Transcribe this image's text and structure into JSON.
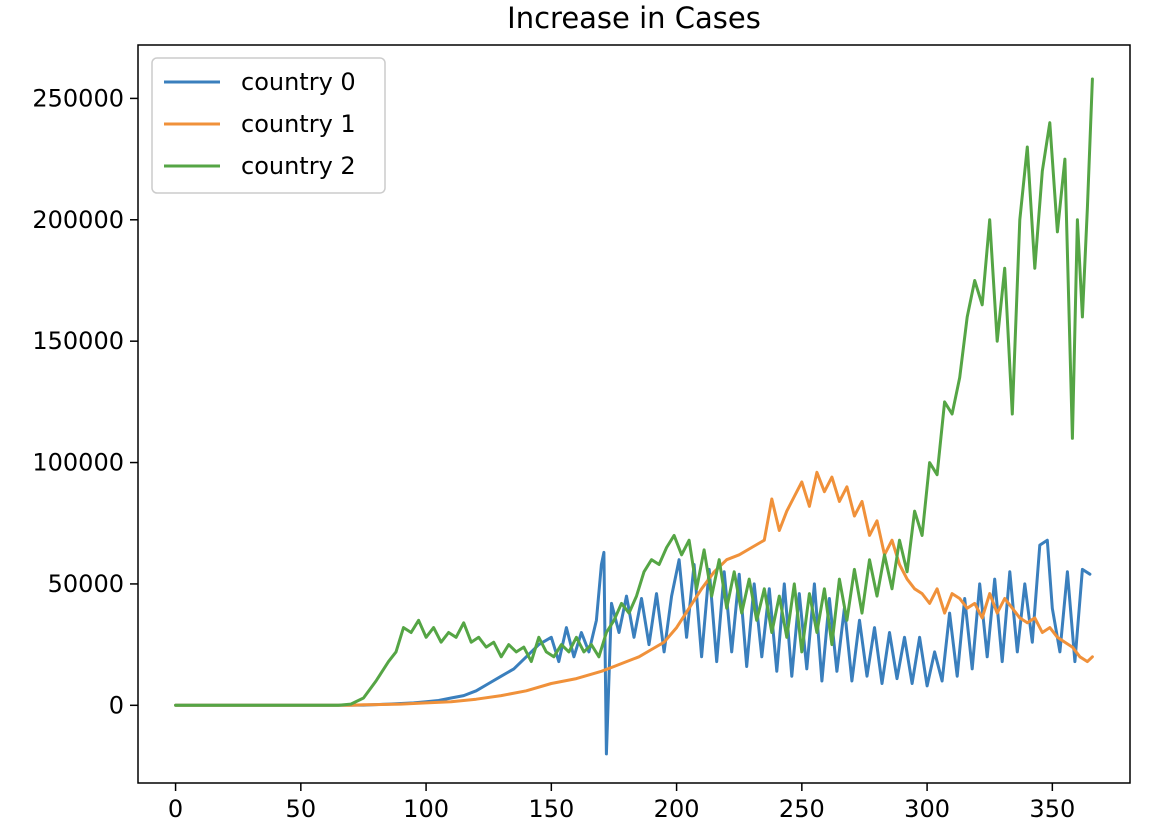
{
  "chart_data": {
    "type": "line",
    "title": "Increase in Cases",
    "xlabel": "",
    "ylabel": "",
    "xlim": [
      -15,
      381
    ],
    "ylim": [
      -32000,
      272000
    ],
    "xticks": [
      0,
      50,
      100,
      150,
      200,
      250,
      300,
      350
    ],
    "yticks": [
      0,
      50000,
      100000,
      150000,
      200000,
      250000
    ],
    "grid": false,
    "legend_position": "top-left",
    "series": [
      {
        "name": "country 0",
        "color": "#3a7fbd",
        "x": [
          0,
          60,
          75,
          85,
          95,
          100,
          105,
          110,
          115,
          120,
          125,
          130,
          135,
          140,
          145,
          150,
          153,
          156,
          159,
          162,
          165,
          168,
          170,
          171,
          172,
          174,
          177,
          180,
          183,
          186,
          189,
          192,
          195,
          198,
          201,
          204,
          207,
          210,
          213,
          216,
          219,
          222,
          225,
          228,
          231,
          234,
          237,
          240,
          243,
          246,
          249,
          252,
          255,
          258,
          261,
          264,
          267,
          270,
          273,
          276,
          279,
          282,
          285,
          288,
          291,
          294,
          297,
          300,
          303,
          306,
          309,
          312,
          315,
          318,
          321,
          324,
          327,
          330,
          333,
          336,
          339,
          342,
          345,
          348,
          350,
          353,
          356,
          359,
          362,
          365
        ],
        "values": [
          0,
          0,
          100,
          500,
          1000,
          1500,
          2000,
          3000,
          4000,
          6000,
          9000,
          12000,
          15000,
          20000,
          25000,
          28000,
          18000,
          32000,
          20000,
          30000,
          22000,
          35000,
          58000,
          63000,
          -20000,
          42000,
          30000,
          45000,
          28000,
          44000,
          25000,
          46000,
          22000,
          45000,
          60000,
          28000,
          58000,
          20000,
          56000,
          18000,
          55000,
          22000,
          54000,
          16000,
          50000,
          20000,
          48000,
          14000,
          50000,
          12000,
          46000,
          15000,
          50000,
          10000,
          44000,
          14000,
          40000,
          10000,
          35000,
          12000,
          32000,
          9000,
          30000,
          11000,
          28000,
          9000,
          28000,
          8000,
          22000,
          10000,
          38000,
          12000,
          44000,
          15000,
          50000,
          20000,
          52000,
          18000,
          55000,
          22000,
          50000,
          26000,
          66000,
          68000,
          40000,
          22000,
          55000,
          18000,
          56000,
          54000
        ]
      },
      {
        "name": "country 1",
        "color": "#f0913a",
        "x": [
          0,
          70,
          75,
          80,
          90,
          100,
          110,
          120,
          130,
          140,
          150,
          160,
          170,
          175,
          180,
          185,
          190,
          195,
          200,
          205,
          210,
          215,
          220,
          225,
          230,
          235,
          238,
          241,
          244,
          247,
          250,
          253,
          256,
          259,
          262,
          265,
          268,
          271,
          274,
          277,
          280,
          283,
          286,
          289,
          292,
          295,
          298,
          301,
          304,
          307,
          310,
          313,
          316,
          319,
          322,
          325,
          328,
          331,
          334,
          337,
          340,
          343,
          346,
          349,
          352,
          355,
          358,
          361,
          364,
          366
        ],
        "values": [
          0,
          0,
          200,
          300,
          500,
          1000,
          1500,
          2500,
          4000,
          6000,
          9000,
          11000,
          14000,
          16000,
          18000,
          20000,
          23000,
          26000,
          32000,
          40000,
          48000,
          55000,
          60000,
          62000,
          65000,
          68000,
          85000,
          72000,
          80000,
          86000,
          92000,
          82000,
          96000,
          88000,
          94000,
          84000,
          90000,
          78000,
          84000,
          70000,
          76000,
          62000,
          68000,
          58000,
          52000,
          48000,
          46000,
          42000,
          48000,
          38000,
          46000,
          44000,
          40000,
          42000,
          36000,
          46000,
          38000,
          44000,
          40000,
          36000,
          34000,
          36000,
          30000,
          32000,
          28000,
          26000,
          24000,
          20000,
          18000,
          20000
        ]
      },
      {
        "name": "country 2",
        "color": "#55a545",
        "x": [
          0,
          65,
          70,
          75,
          80,
          85,
          88,
          91,
          94,
          97,
          100,
          103,
          106,
          109,
          112,
          115,
          118,
          121,
          124,
          127,
          130,
          133,
          136,
          139,
          142,
          145,
          148,
          151,
          154,
          157,
          160,
          163,
          166,
          169,
          172,
          175,
          178,
          181,
          184,
          187,
          190,
          193,
          196,
          199,
          202,
          205,
          208,
          211,
          214,
          217,
          220,
          223,
          226,
          229,
          232,
          235,
          238,
          241,
          244,
          247,
          250,
          253,
          256,
          259,
          262,
          265,
          268,
          271,
          274,
          277,
          280,
          283,
          286,
          289,
          292,
          295,
          298,
          301,
          304,
          307,
          310,
          313,
          316,
          319,
          322,
          325,
          328,
          331,
          334,
          337,
          340,
          343,
          346,
          349,
          352,
          355,
          358,
          360,
          362,
          364,
          366
        ],
        "values": [
          0,
          0,
          500,
          3000,
          10000,
          18000,
          22000,
          32000,
          30000,
          35000,
          28000,
          32000,
          26000,
          30000,
          28000,
          34000,
          26000,
          28000,
          24000,
          26000,
          20000,
          25000,
          22000,
          24000,
          18000,
          28000,
          22000,
          20000,
          25000,
          22000,
          28000,
          22000,
          25000,
          20000,
          30000,
          35000,
          42000,
          38000,
          45000,
          55000,
          60000,
          58000,
          65000,
          70000,
          62000,
          68000,
          48000,
          64000,
          45000,
          60000,
          40000,
          55000,
          38000,
          52000,
          35000,
          48000,
          30000,
          45000,
          28000,
          50000,
          22000,
          46000,
          30000,
          48000,
          25000,
          52000,
          35000,
          56000,
          38000,
          60000,
          45000,
          62000,
          48000,
          68000,
          55000,
          80000,
          70000,
          100000,
          95000,
          125000,
          120000,
          135000,
          160000,
          175000,
          165000,
          200000,
          150000,
          180000,
          120000,
          200000,
          230000,
          180000,
          220000,
          240000,
          195000,
          225000,
          110000,
          200000,
          160000,
          205000,
          258000
        ]
      }
    ]
  }
}
